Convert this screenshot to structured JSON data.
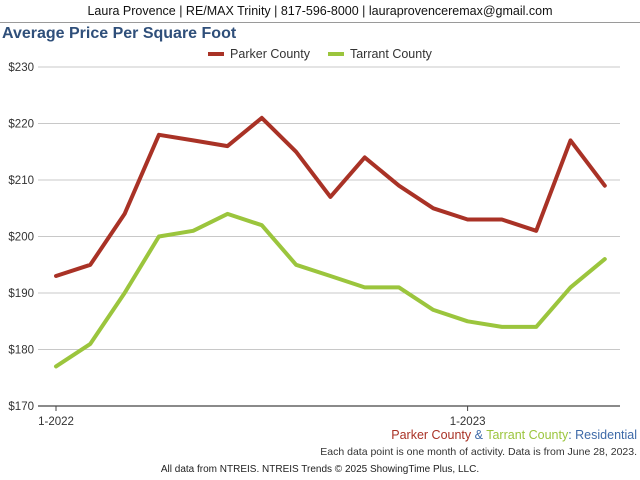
{
  "header": {
    "contact": "Laura Provence | RE/MAX Trinity | 817-596-8000 | lauraprovenceremax@gmail.com"
  },
  "colors": {
    "parker": "#a93226",
    "tarrant": "#9bc53d",
    "residential": "#3e6aa8",
    "grid": "#c8c8c8",
    "axis": "#444444",
    "title": "#2f4f7a"
  },
  "footer": {
    "series_a": "Parker County",
    "amp": " & ",
    "series_b": "Tarrant County",
    "colon": ": ",
    "category": "Residential",
    "note": "Each data point is one month of activity. Data is from June 28, 2023.",
    "source": "All data from NTREIS. NTREIS Trends © 2025 ShowingTime Plus, LLC."
  },
  "chart_data": {
    "type": "line",
    "title": "Average Price Per Square Foot",
    "x": [
      "2022-01",
      "2022-02",
      "2022-03",
      "2022-04",
      "2022-05",
      "2022-06",
      "2022-07",
      "2022-08",
      "2022-09",
      "2022-10",
      "2022-11",
      "2022-12",
      "2023-01",
      "2023-02",
      "2023-03",
      "2023-04",
      "2023-05"
    ],
    "xtick_labels": [
      {
        "x": "2022-01",
        "label": "1-2022"
      },
      {
        "x": "2023-01",
        "label": "1-2023"
      }
    ],
    "ylim": [
      170,
      230
    ],
    "yticks": [
      170,
      180,
      190,
      200,
      210,
      220,
      230
    ],
    "ytick_labels": [
      "$170",
      "$180",
      "$190",
      "$200",
      "$210",
      "$220",
      "$230"
    ],
    "grid": true,
    "legend_position": "top-center",
    "series": [
      {
        "name": "Parker County",
        "color": "#a93226",
        "values": [
          193,
          195,
          204,
          218,
          217,
          216,
          221,
          215,
          207,
          214,
          209,
          205,
          203,
          203,
          201,
          217,
          209
        ]
      },
      {
        "name": "Tarrant County",
        "color": "#9bc53d",
        "values": [
          177,
          181,
          190,
          200,
          201,
          204,
          202,
          195,
          193,
          191,
          191,
          187,
          185,
          184,
          184,
          191,
          196
        ]
      }
    ]
  }
}
